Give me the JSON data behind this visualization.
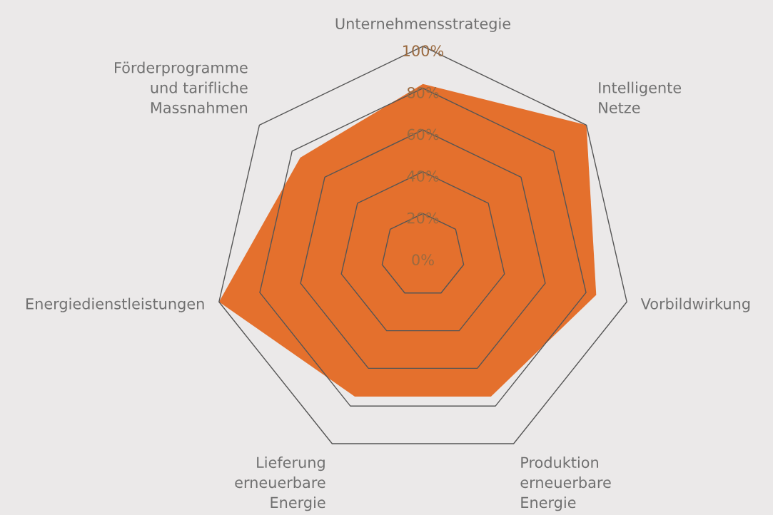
{
  "chart_data": {
    "type": "radar",
    "categories": [
      "Unternehmensstrategie",
      "Intelligente\nNetze",
      "Vorbildwirkung",
      "Produktion\nerneuerbare\nEnergie",
      "Lieferung\nerneuerbare\nEnergie",
      "Energiedienstleistungen",
      "Förderprogramme\nund tarifliche\nMassnahmen"
    ],
    "series": [
      {
        "color": "#e4702d",
        "values": [
          82,
          100,
          85,
          75,
          75,
          100,
          75
        ]
      }
    ],
    "ylim": [
      0,
      100
    ],
    "yticks": [
      {
        "value": 0,
        "label": "0%"
      },
      {
        "value": 20,
        "label": "20%"
      },
      {
        "value": 40,
        "label": "40%"
      },
      {
        "value": 60,
        "label": "60%"
      },
      {
        "value": 80,
        "label": "80%"
      },
      {
        "value": 100,
        "label": "100%"
      }
    ],
    "grid": true
  }
}
